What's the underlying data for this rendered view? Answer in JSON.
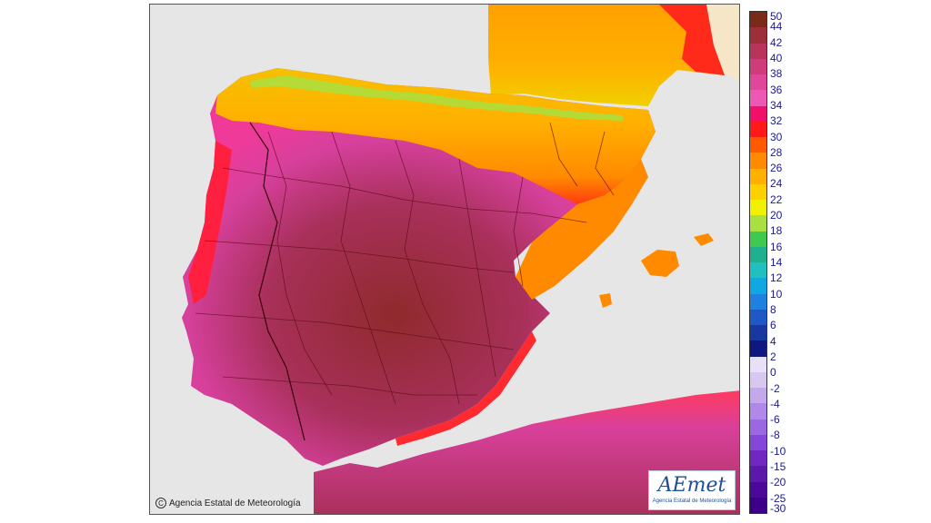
{
  "map": {
    "credit_text": "Agencia Estatal de Meteorología",
    "logo_text": "AEmet",
    "logo_subtext": "Agencia Estatal de Meteorología",
    "sea_color": "#e6e6e6",
    "land_outside_color": "#f5e6c8"
  },
  "legend": {
    "labels": [
      "50",
      "44",
      "42",
      "40",
      "38",
      "36",
      "34",
      "32",
      "30",
      "28",
      "26",
      "24",
      "22",
      "20",
      "18",
      "16",
      "14",
      "12",
      "10",
      "8",
      "6",
      "4",
      "2",
      "0",
      "-2",
      "-4",
      "-6",
      "-8",
      "-10",
      "-15",
      "-20",
      "-25",
      "-30"
    ],
    "colors": [
      "#7a2a18",
      "#9c2f3a",
      "#b8345c",
      "#d03c7a",
      "#e0469a",
      "#ec58b4",
      "#f0106a",
      "#ff1a1a",
      "#ff5a00",
      "#ff8a00",
      "#ffb000",
      "#ffd000",
      "#f0f000",
      "#a8e040",
      "#40c850",
      "#20b090",
      "#20c0c0",
      "#10a8e0",
      "#2080e0",
      "#2058c8",
      "#1838a0",
      "#101880",
      "#e8e0f8",
      "#d8c8f0",
      "#c4a8ec",
      "#b088e8",
      "#9a68e0",
      "#8448d8",
      "#7028c0",
      "#5c18a8",
      "#4c0898",
      "#3c0088"
    ]
  }
}
